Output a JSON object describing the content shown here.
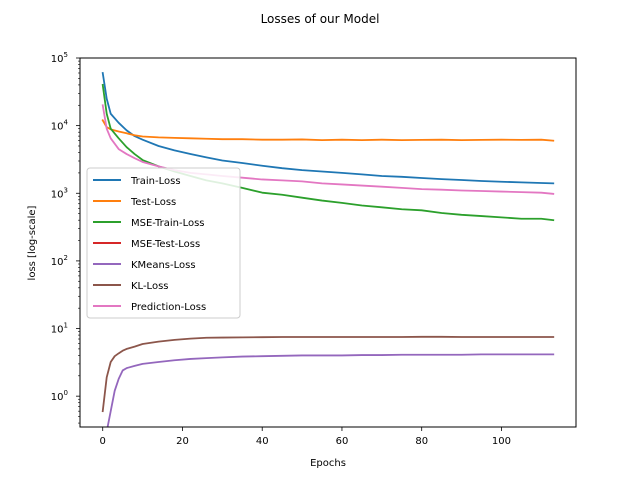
{
  "chart_data": {
    "type": "line",
    "title": "Losses of our Model",
    "xlabel": "Epochs",
    "ylabel": "loss [log-scale]",
    "yscale": "log",
    "xlim": [
      -5.7,
      118.7
    ],
    "ylim": [
      0.35,
      100000
    ],
    "x_ticks": [
      0,
      20,
      40,
      60,
      80,
      100
    ],
    "y_ticks": [
      {
        "value": 1,
        "label": "10",
        "exp": "0"
      },
      {
        "value": 10,
        "label": "10",
        "exp": "1"
      },
      {
        "value": 100,
        "label": "10",
        "exp": "2"
      },
      {
        "value": 1000,
        "label": "10",
        "exp": "3"
      },
      {
        "value": 10000,
        "label": "10",
        "exp": "4"
      },
      {
        "value": 100000,
        "label": "10",
        "exp": "5"
      }
    ],
    "grid": false,
    "legend_position": "center-left",
    "series": [
      {
        "name": "Train-Loss",
        "color": "#1f77b4",
        "points": [
          [
            0,
            60000
          ],
          [
            1,
            25000
          ],
          [
            2,
            15000
          ],
          [
            4,
            11000
          ],
          [
            6,
            8500
          ],
          [
            8,
            7000
          ],
          [
            10,
            6200
          ],
          [
            14,
            5000
          ],
          [
            18,
            4300
          ],
          [
            22,
            3800
          ],
          [
            26,
            3400
          ],
          [
            30,
            3050
          ],
          [
            35,
            2800
          ],
          [
            40,
            2550
          ],
          [
            45,
            2350
          ],
          [
            50,
            2200
          ],
          [
            55,
            2100
          ],
          [
            60,
            2000
          ],
          [
            65,
            1900
          ],
          [
            70,
            1800
          ],
          [
            75,
            1750
          ],
          [
            80,
            1680
          ],
          [
            85,
            1620
          ],
          [
            90,
            1570
          ],
          [
            95,
            1520
          ],
          [
            100,
            1480
          ],
          [
            105,
            1450
          ],
          [
            110,
            1420
          ],
          [
            113,
            1400
          ]
        ]
      },
      {
        "name": "Test-Loss",
        "color": "#ff7f0e",
        "points": [
          [
            0,
            12000
          ],
          [
            1,
            9500
          ],
          [
            2,
            8800
          ],
          [
            4,
            8200
          ],
          [
            6,
            7700
          ],
          [
            8,
            7200
          ],
          [
            10,
            6900
          ],
          [
            14,
            6700
          ],
          [
            18,
            6600
          ],
          [
            22,
            6500
          ],
          [
            26,
            6400
          ],
          [
            30,
            6300
          ],
          [
            35,
            6300
          ],
          [
            40,
            6200
          ],
          [
            45,
            6200
          ],
          [
            50,
            6250
          ],
          [
            55,
            6100
          ],
          [
            60,
            6200
          ],
          [
            65,
            6100
          ],
          [
            70,
            6200
          ],
          [
            75,
            6100
          ],
          [
            80,
            6150
          ],
          [
            85,
            6200
          ],
          [
            90,
            6100
          ],
          [
            95,
            6150
          ],
          [
            100,
            6200
          ],
          [
            105,
            6150
          ],
          [
            110,
            6200
          ],
          [
            113,
            6000
          ]
        ]
      },
      {
        "name": "MSE-Train-Loss",
        "color": "#2ca02c",
        "points": [
          [
            0,
            40000
          ],
          [
            1,
            15000
          ],
          [
            2,
            9000
          ],
          [
            4,
            6500
          ],
          [
            6,
            4800
          ],
          [
            8,
            3800
          ],
          [
            10,
            3100
          ],
          [
            14,
            2500
          ],
          [
            18,
            2100
          ],
          [
            22,
            1800
          ],
          [
            26,
            1550
          ],
          [
            30,
            1400
          ],
          [
            35,
            1200
          ],
          [
            40,
            1020
          ],
          [
            45,
            950
          ],
          [
            50,
            860
          ],
          [
            55,
            780
          ],
          [
            60,
            720
          ],
          [
            65,
            660
          ],
          [
            70,
            620
          ],
          [
            75,
            580
          ],
          [
            80,
            560
          ],
          [
            85,
            510
          ],
          [
            90,
            480
          ],
          [
            95,
            460
          ],
          [
            100,
            440
          ],
          [
            105,
            420
          ],
          [
            110,
            420
          ],
          [
            113,
            400
          ]
        ]
      },
      {
        "name": "MSE-Test-Loss",
        "color": "#d62728",
        "points": []
      },
      {
        "name": "KMeans-Loss",
        "color": "#9467bd",
        "points": [
          [
            1,
            0.3
          ],
          [
            2,
            0.6
          ],
          [
            3,
            1.2
          ],
          [
            4,
            1.8
          ],
          [
            5,
            2.4
          ],
          [
            6,
            2.6
          ],
          [
            8,
            2.8
          ],
          [
            10,
            3.0
          ],
          [
            14,
            3.2
          ],
          [
            18,
            3.4
          ],
          [
            22,
            3.55
          ],
          [
            26,
            3.65
          ],
          [
            30,
            3.75
          ],
          [
            35,
            3.85
          ],
          [
            40,
            3.9
          ],
          [
            45,
            3.95
          ],
          [
            50,
            4.0
          ],
          [
            55,
            4.0
          ],
          [
            60,
            4.0
          ],
          [
            65,
            4.05
          ],
          [
            70,
            4.05
          ],
          [
            75,
            4.1
          ],
          [
            80,
            4.1
          ],
          [
            85,
            4.1
          ],
          [
            90,
            4.1
          ],
          [
            95,
            4.15
          ],
          [
            100,
            4.15
          ],
          [
            105,
            4.15
          ],
          [
            110,
            4.15
          ],
          [
            113,
            4.15
          ]
        ]
      },
      {
        "name": "KL-Loss",
        "color": "#8c564b",
        "points": [
          [
            0,
            0.6
          ],
          [
            1,
            1.9
          ],
          [
            2,
            3.2
          ],
          [
            3,
            3.9
          ],
          [
            4,
            4.3
          ],
          [
            5,
            4.7
          ],
          [
            6,
            5.0
          ],
          [
            8,
            5.4
          ],
          [
            10,
            5.9
          ],
          [
            14,
            6.4
          ],
          [
            18,
            6.8
          ],
          [
            22,
            7.1
          ],
          [
            26,
            7.3
          ],
          [
            30,
            7.35
          ],
          [
            35,
            7.4
          ],
          [
            40,
            7.45
          ],
          [
            45,
            7.5
          ],
          [
            50,
            7.5
          ],
          [
            55,
            7.5
          ],
          [
            60,
            7.5
          ],
          [
            65,
            7.5
          ],
          [
            70,
            7.5
          ],
          [
            75,
            7.5
          ],
          [
            80,
            7.55
          ],
          [
            85,
            7.55
          ],
          [
            90,
            7.5
          ],
          [
            95,
            7.5
          ],
          [
            100,
            7.5
          ],
          [
            105,
            7.5
          ],
          [
            110,
            7.5
          ],
          [
            113,
            7.5
          ]
        ]
      },
      {
        "name": "Prediction-Loss",
        "color": "#e377c2",
        "points": [
          [
            0,
            20000
          ],
          [
            1,
            9000
          ],
          [
            2,
            6500
          ],
          [
            4,
            4500
          ],
          [
            6,
            3800
          ],
          [
            8,
            3300
          ],
          [
            10,
            2900
          ],
          [
            14,
            2500
          ],
          [
            18,
            2200
          ],
          [
            22,
            2000
          ],
          [
            26,
            1900
          ],
          [
            30,
            1800
          ],
          [
            35,
            1700
          ],
          [
            40,
            1600
          ],
          [
            45,
            1550
          ],
          [
            50,
            1500
          ],
          [
            55,
            1400
          ],
          [
            60,
            1350
          ],
          [
            65,
            1300
          ],
          [
            70,
            1250
          ],
          [
            75,
            1200
          ],
          [
            80,
            1150
          ],
          [
            85,
            1130
          ],
          [
            90,
            1100
          ],
          [
            95,
            1080
          ],
          [
            100,
            1060
          ],
          [
            105,
            1040
          ],
          [
            110,
            1020
          ],
          [
            113,
            980
          ]
        ]
      }
    ]
  }
}
